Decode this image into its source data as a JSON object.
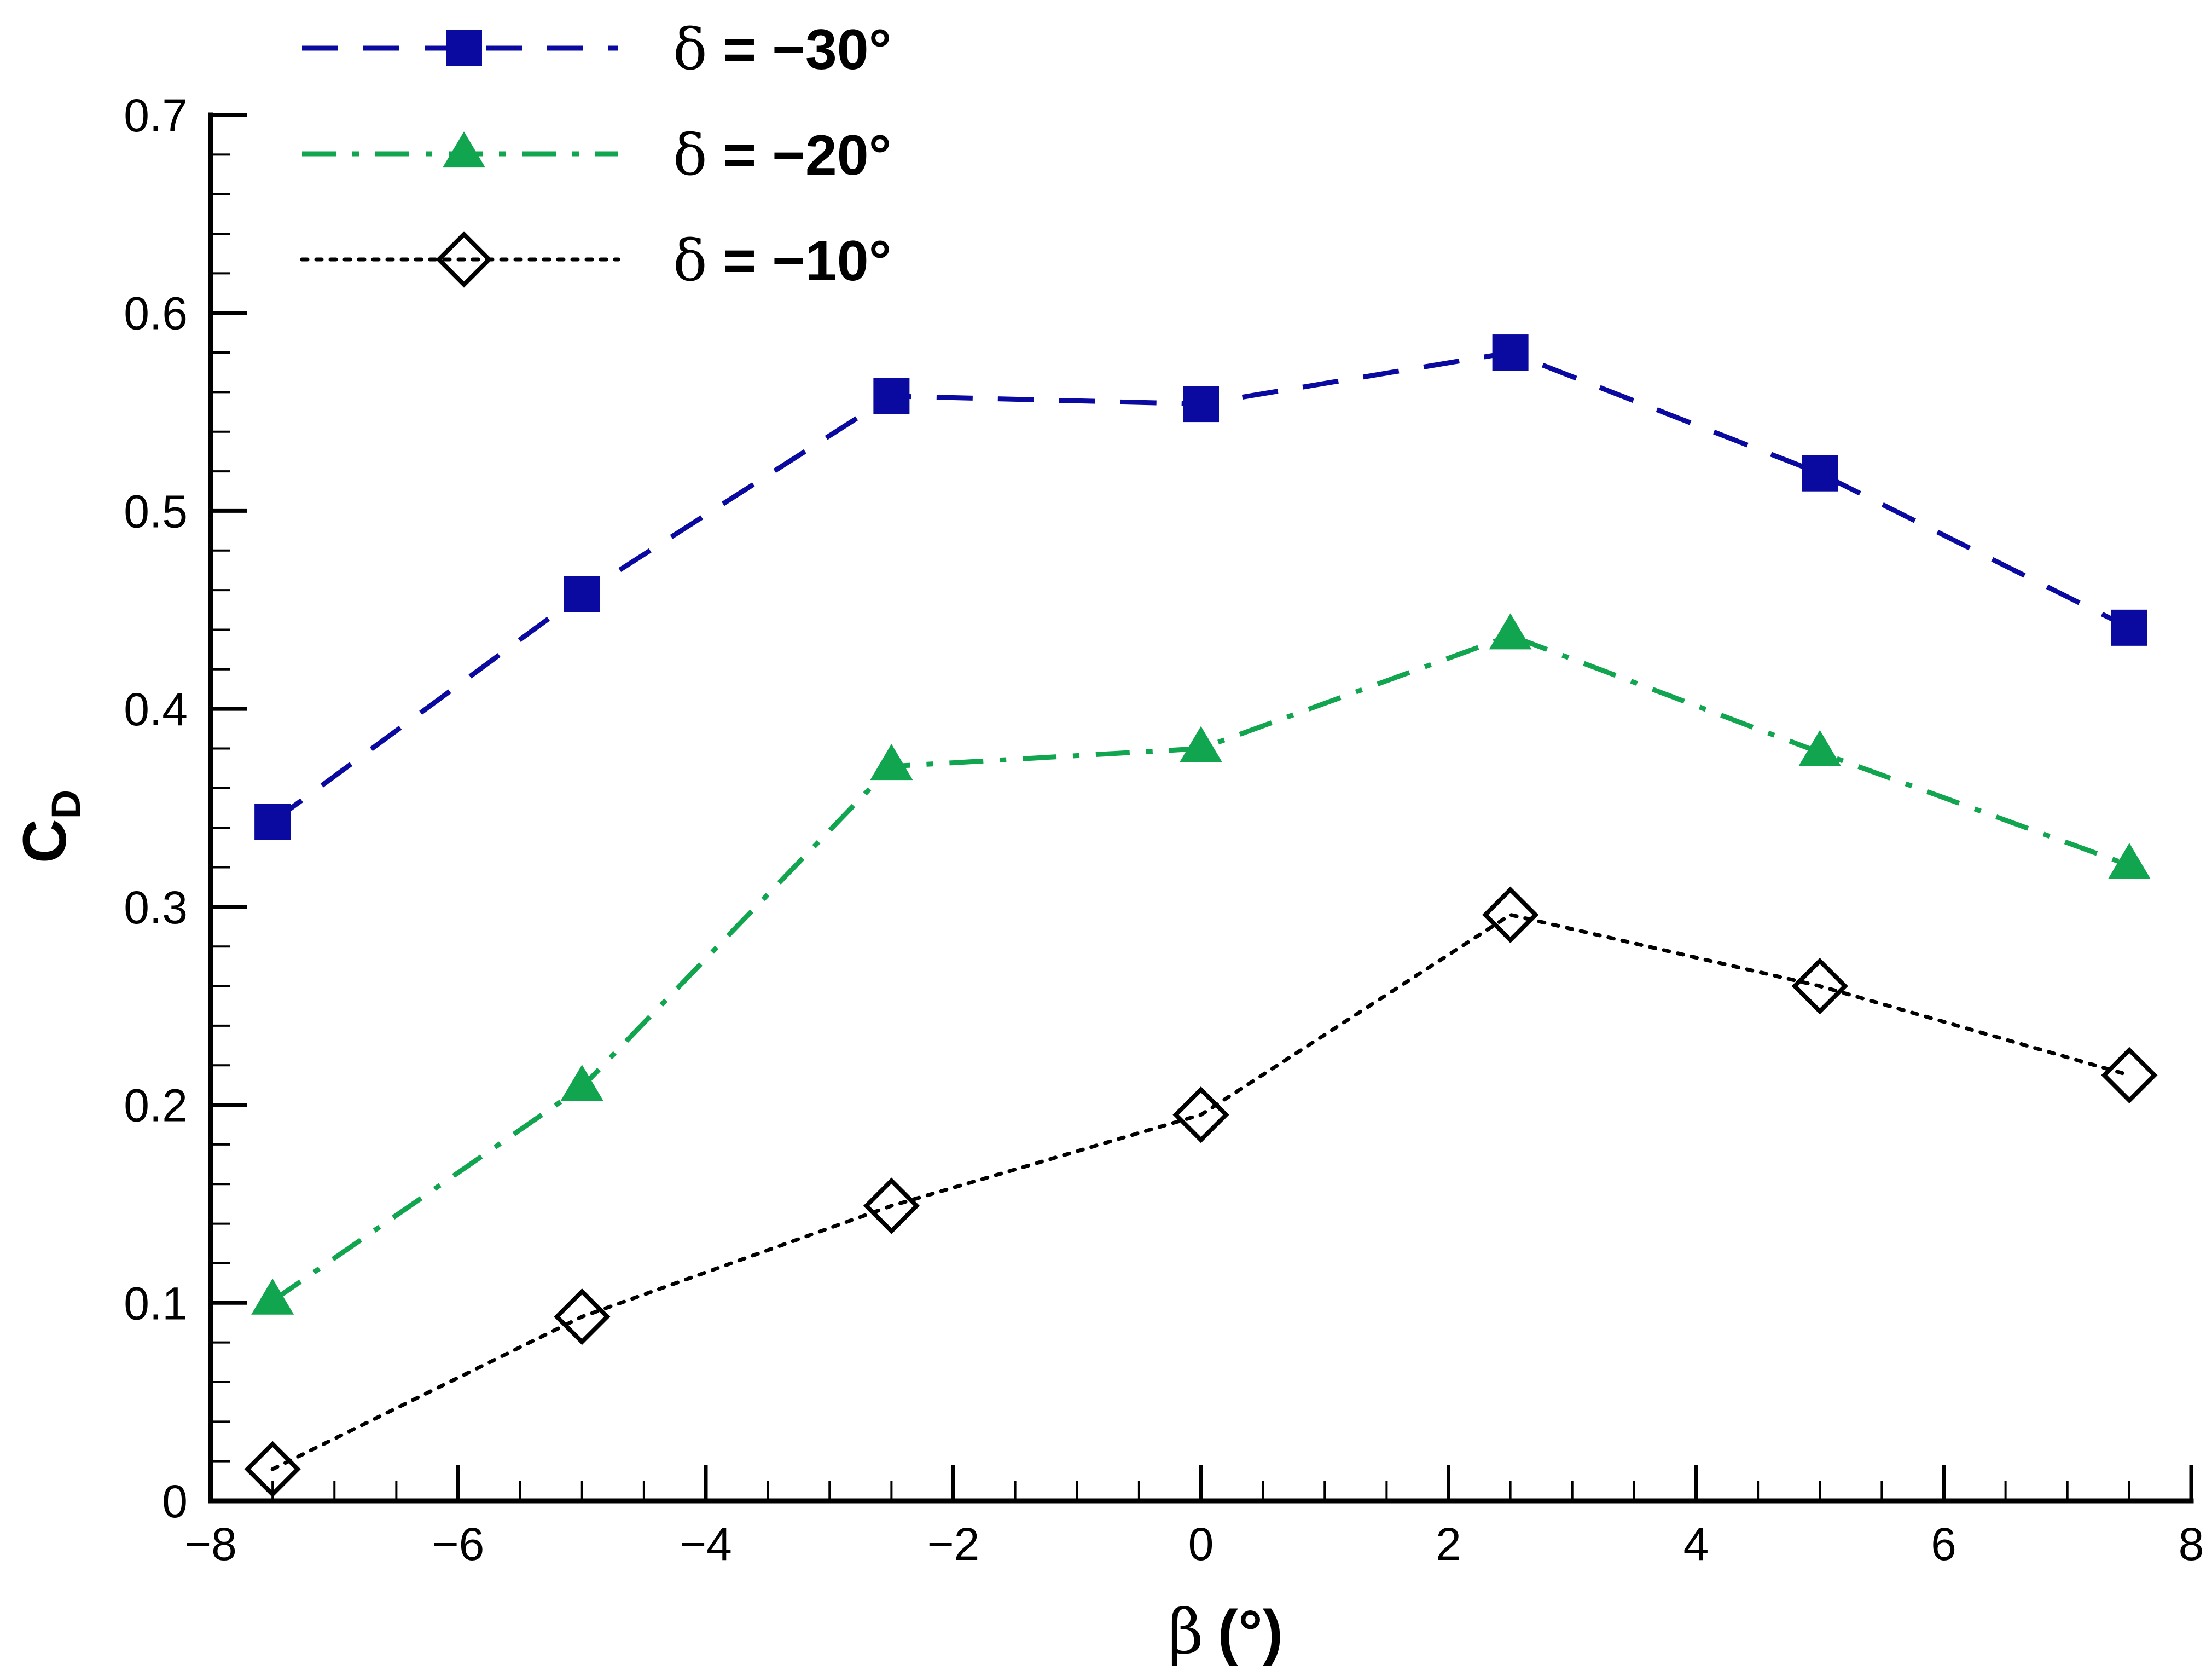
{
  "chart_data": {
    "type": "line",
    "title": "",
    "xlabel_symbol": "β",
    "xlabel_unit": "(°)",
    "ylabel_main": "C",
    "ylabel_sub": "D",
    "xlim": [
      -8,
      8
    ],
    "ylim": [
      0,
      0.7
    ],
    "xticks": [
      -8,
      -6,
      -4,
      -2,
      0,
      2,
      4,
      6,
      8
    ],
    "xtick_labels": [
      "−8",
      "−6",
      "−4",
      "−2",
      "0",
      "2",
      "4",
      "6",
      "8"
    ],
    "yticks": [
      0,
      0.1,
      0.2,
      0.3,
      0.4,
      0.5,
      0.6,
      0.7
    ],
    "ytick_labels": [
      "0",
      "0.1",
      "0.2",
      "0.3",
      "0.4",
      "0.5",
      "0.6",
      "0.7"
    ],
    "x": [
      -7.5,
      -5,
      -2.5,
      0,
      2.5,
      5,
      7.5
    ],
    "legend_position": "top-left",
    "series": [
      {
        "name": "δ = −30°",
        "delta_symbol": "δ",
        "label_rest": " = −30°",
        "color": "#0a0aa0",
        "line_style": "dashed",
        "marker": "square",
        "values": [
          0.343,
          0.458,
          0.558,
          0.554,
          0.58,
          0.519,
          0.441
        ]
      },
      {
        "name": "δ = −20°",
        "delta_symbol": "δ",
        "label_rest": " = −20°",
        "color": "#12a550",
        "line_style": "dashdot",
        "marker": "triangle",
        "values": [
          0.101,
          0.209,
          0.371,
          0.38,
          0.437,
          0.378,
          0.321
        ]
      },
      {
        "name": "δ = −10°",
        "delta_symbol": "δ",
        "label_rest": " = −10°",
        "color": "#000000",
        "line_style": "dotted",
        "marker": "diamond-open",
        "values": [
          0.016,
          0.093,
          0.149,
          0.195,
          0.296,
          0.26,
          0.215
        ]
      }
    ]
  }
}
